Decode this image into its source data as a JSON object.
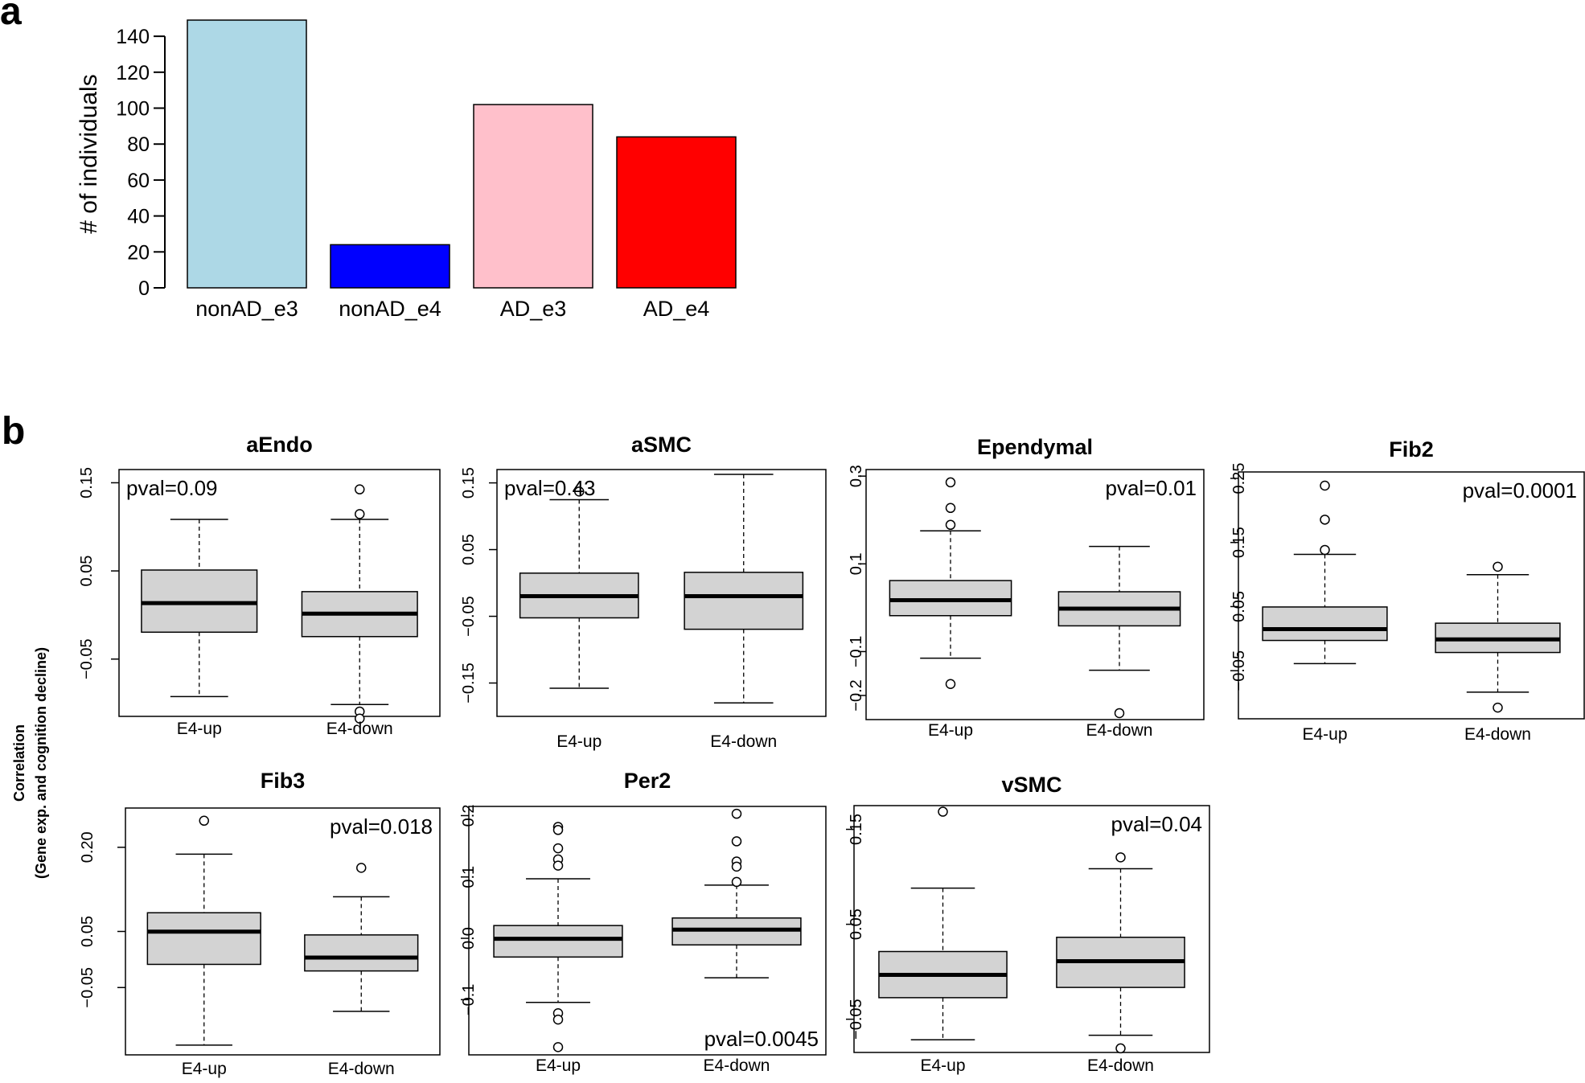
{
  "panel_labels": {
    "a": "a",
    "b": "b"
  },
  "shared_ylabel": {
    "line1": "Correlation",
    "line2": "(Gene exp. and cognition decline)"
  },
  "colors": {
    "box_fill": "#d3d3d3",
    "nonAD_e3": "#add8e6",
    "nonAD_e4": "#0000ff",
    "AD_e3": "#ffc0cb",
    "AD_e4": "#ff0000"
  },
  "chart_data": [
    {
      "type": "bar",
      "panel": "a",
      "categories": [
        "nonAD_e3",
        "nonAD_e4",
        "AD_e3",
        "AD_e4"
      ],
      "values": [
        149,
        24,
        102,
        84
      ],
      "colors": [
        "#add8e6",
        "#0000ff",
        "#ffc0cb",
        "#ff0000"
      ],
      "ylabel": "# of individuals",
      "yticks": [
        0,
        20,
        40,
        60,
        80,
        100,
        120,
        140
      ],
      "ylim": [
        0,
        149
      ]
    },
    {
      "type": "box",
      "panel": "b",
      "title": "aEndo",
      "pval": "pval=0.09",
      "pval_pos": "top-left",
      "categories": [
        "E4-up",
        "E4-down"
      ],
      "ylim": [
        -0.115,
        0.165
      ],
      "yticks": [
        -0.05,
        0.05,
        0.15
      ],
      "yticklabels": [
        "-0.05",
        "0.05",
        "0.15"
      ],
      "boxes": [
        {
          "q1": -0.0195,
          "median": 0.0135,
          "q3": 0.051,
          "whisker_low": -0.0925,
          "whisker_high": 0.1085,
          "outliers": []
        },
        {
          "q1": -0.0245,
          "median": 0.0015,
          "q3": 0.0265,
          "whisker_low": -0.1015,
          "whisker_high": 0.1085,
          "outliers": [
            0.1425,
            0.1145,
            -0.1095,
            -0.1175
          ]
        }
      ]
    },
    {
      "type": "box",
      "panel": "b",
      "title": "aSMC",
      "pval": "pval=0.43",
      "pval_pos": "top-left",
      "categories": [
        "E4-up",
        "E4-down"
      ],
      "ylim": [
        -0.2,
        0.17
      ],
      "yticks": [
        -0.15,
        -0.05,
        0.05,
        0.15
      ],
      "yticklabels": [
        "-0.15",
        "-0.05",
        "0.05",
        "0.15"
      ],
      "boxes": [
        {
          "q1": -0.0523,
          "median": -0.0198,
          "q3": 0.0147,
          "whisker_low": -0.1578,
          "whisker_high": 0.1248,
          "outliers": [
            0.137
          ]
        },
        {
          "q1": -0.0694,
          "median": -0.0198,
          "q3": 0.0159,
          "whisker_low": -0.1798,
          "whisker_high": 0.1627,
          "outliers": []
        }
      ]
    },
    {
      "type": "box",
      "panel": "b",
      "title": "Ependymal",
      "pval": "pval=0.01",
      "pval_pos": "top-right",
      "categories": [
        "E4-up",
        "E4-down"
      ],
      "ylim": [
        -0.255,
        0.315
      ],
      "yticks": [
        -0.2,
        -0.1,
        0.1,
        0.3
      ],
      "yticklabels": [
        "-0.2",
        "-0.1",
        "0.1",
        "0.3"
      ],
      "boxes": [
        {
          "q1": -0.0181,
          "median": 0.0172,
          "q3": 0.0619,
          "whisker_low": -0.1151,
          "whisker_high": 0.1753,
          "outliers": [
            0.2858,
            0.2274,
            0.1889,
            -0.1739
          ]
        },
        {
          "q1": -0.0413,
          "median": -0.0021,
          "q3": 0.0364,
          "whisker_low": -0.1426,
          "whisker_high": 0.1398,
          "outliers": [
            -0.2403
          ]
        }
      ]
    },
    {
      "type": "box",
      "panel": "b",
      "title": "Fib2",
      "pval": "pval=0.0001",
      "pval_pos": "top-right",
      "categories": [
        "E4-up",
        "E4-down"
      ],
      "ylim": [
        -0.125,
        0.26
      ],
      "yticks": [
        -0.05,
        0.05,
        0.15,
        0.25
      ],
      "yticklabels": [
        "-0.05",
        "0.05",
        "0.15",
        "0.25"
      ],
      "boxes": [
        {
          "q1": -0.0028,
          "median": 0.0148,
          "q3": 0.0494,
          "whisker_low": -0.0389,
          "whisker_high": 0.1315,
          "outliers": [
            0.2387,
            0.1856,
            0.1384
          ]
        },
        {
          "q1": -0.0216,
          "median": -0.0012,
          "q3": 0.0241,
          "whisker_low": -0.0834,
          "whisker_high": 0.0998,
          "outliers": [
            0.1122,
            -0.1076
          ]
        }
      ]
    },
    {
      "type": "box",
      "panel": "b",
      "title": "Fib3",
      "pval": "pval=0.018",
      "pval_pos": "top-right",
      "categories": [
        "E4-up",
        "E4-down"
      ],
      "ylim": [
        -0.17,
        0.27
      ],
      "yticks": [
        -0.05,
        0.05,
        0.2
      ],
      "yticklabels": [
        "-0.05",
        "0.05",
        "0.20"
      ],
      "boxes": [
        {
          "q1": -0.0087,
          "median": 0.0496,
          "q3": 0.0833,
          "whisker_low": -0.1526,
          "whisker_high": 0.1878,
          "outliers": [
            0.2474
          ]
        },
        {
          "q1": -0.0204,
          "median": 0.0034,
          "q3": 0.0438,
          "whisker_low": -0.0925,
          "whisker_high": 0.1118,
          "outliers": [
            0.1634
          ]
        }
      ]
    },
    {
      "type": "box",
      "panel": "b",
      "title": "Per2",
      "pval": "pval=0.0045",
      "pval_pos": "bottom-right",
      "categories": [
        "E4-up",
        "E4-down"
      ],
      "ylim": [
        -0.19,
        0.215
      ],
      "yticks": [
        -0.1,
        0.0,
        0.1,
        0.2
      ],
      "yticklabels": [
        "-0.1",
        "0.0",
        "0.1",
        "0.2"
      ],
      "boxes": [
        {
          "q1": -0.0305,
          "median": -0.0008,
          "q3": 0.0208,
          "whisker_low": -0.1045,
          "whisker_high": 0.0971,
          "outliers": [
            0.1816,
            0.1766,
            0.1467,
            0.1286,
            0.1185,
            -0.1222,
            -0.1325,
            -0.1774
          ]
        },
        {
          "q1": -0.0107,
          "median": 0.0141,
          "q3": 0.0331,
          "whisker_low": -0.0643,
          "whisker_high": 0.0867,
          "outliers": [
            0.203,
            0.1581,
            0.1252,
            0.1169,
            0.0919
          ]
        }
      ]
    },
    {
      "type": "box",
      "panel": "b",
      "title": "vSMC",
      "pval": "pval=0.04",
      "pval_pos": "top-right",
      "categories": [
        "E4-up",
        "E4-down"
      ],
      "ylim": [
        -0.085,
        0.175
      ],
      "yticks": [
        -0.05,
        0.05,
        0.15
      ],
      "yticklabels": [
        "-0.05",
        "0.05",
        "0.15"
      ],
      "boxes": [
        {
          "q1": -0.0273,
          "median": -0.0033,
          "q3": 0.0213,
          "whisker_low": -0.0717,
          "whisker_high": 0.0881,
          "outliers": [
            0.1686
          ]
        },
        {
          "q1": -0.0165,
          "median": 0.0111,
          "q3": 0.0363,
          "whisker_low": -0.0669,
          "whisker_high": 0.1085,
          "outliers": [
            0.1205,
            -0.0807
          ]
        }
      ]
    }
  ]
}
